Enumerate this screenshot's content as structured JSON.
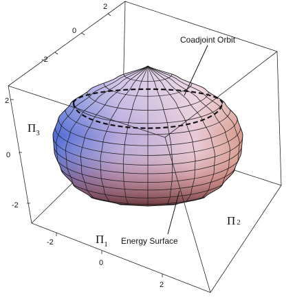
{
  "annotations": {
    "coadjoint_orbit": "Coadjoint Orbit",
    "energy_surface": "Energy Surface"
  },
  "axes": {
    "pi1": {
      "symbol": "Π",
      "subscript": "1",
      "ticks": [
        "-2",
        "0",
        "2"
      ]
    },
    "pi2": {
      "symbol": "Π",
      "subscript": "2",
      "ticks": [
        "-2",
        "0",
        "2"
      ]
    },
    "pi3": {
      "symbol": "Π",
      "subscript": "3",
      "ticks": [
        "-2",
        "0",
        "2"
      ]
    }
  },
  "colors": {
    "box": "#222222",
    "mesh": "#1a1a1a",
    "orbit_curve": "#111111",
    "surface_top": "#e2cdea",
    "surface_left": "#4f6fd8",
    "surface_bottom": "#8a3f3f"
  }
}
